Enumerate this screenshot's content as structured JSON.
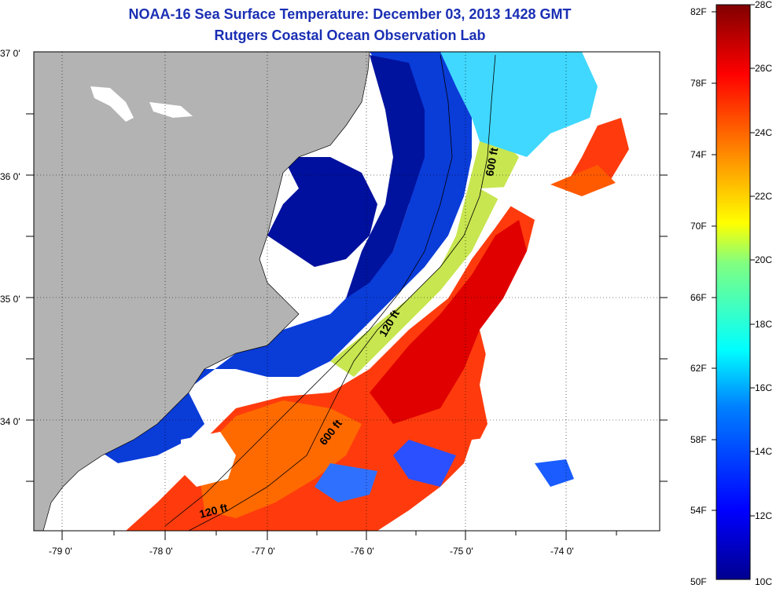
{
  "title": "NOAA-16 Sea Surface Temperature:  December 03, 2013 1428 GMT",
  "subtitle": "Rutgers Coastal Ocean Observation Lab",
  "map": {
    "lat_ticks": [
      "37 0'",
      "36 0'",
      "35 0'",
      "34 0'"
    ],
    "lon_ticks": [
      "-79 0'",
      "-78 0'",
      "-77 0'",
      "-76 0'",
      "-75 0'",
      "-74 0'"
    ],
    "contours": [
      "600 ft",
      "120 ft",
      "600 ft",
      "120 ft"
    ]
  },
  "colorbar": {
    "fahrenheit_labels": [
      "82F",
      "78F",
      "74F",
      "70F",
      "66F",
      "62F",
      "58F",
      "54F",
      "50F"
    ],
    "celsius_labels": [
      "28C",
      "26C",
      "24C",
      "22C",
      "20C",
      "18C",
      "16C",
      "14C",
      "12C",
      "10C"
    ],
    "colors": [
      "#00008f",
      "#0000ff",
      "#0080ff",
      "#00ffff",
      "#80ff80",
      "#ffff00",
      "#ff8000",
      "#ff0000",
      "#800000"
    ]
  },
  "colors": {
    "land": "#b3b3b3",
    "cold_water": "#001a9e",
    "title": "#1a2fb4"
  }
}
